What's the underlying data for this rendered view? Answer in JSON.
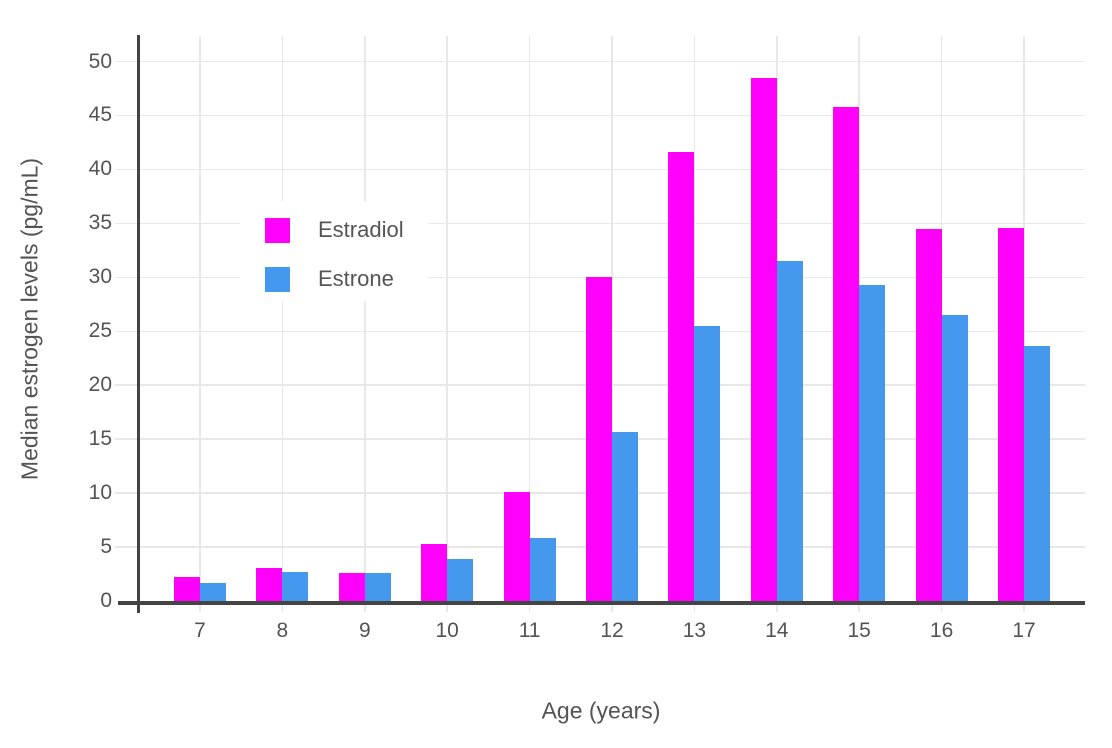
{
  "chart_data": {
    "type": "bar",
    "categories": [
      7,
      8,
      9,
      10,
      11,
      12,
      13,
      14,
      15,
      16,
      17
    ],
    "series": [
      {
        "name": "Estradiol",
        "color": "#FF00FB",
        "values": [
          2.2,
          3.1,
          2.6,
          5.3,
          10.1,
          30.0,
          41.6,
          48.5,
          45.8,
          34.5,
          34.6
        ]
      },
      {
        "name": "Estrone",
        "color": "#4499EE",
        "values": [
          1.7,
          2.7,
          2.6,
          3.9,
          5.8,
          15.7,
          25.5,
          31.5,
          29.3,
          26.5,
          23.6
        ]
      }
    ],
    "title": "",
    "xlabel": "Age (years)",
    "ylabel": "Median estrogen levels (pg/mL)",
    "ylim": [
      0,
      52.5
    ],
    "yticks": [
      0,
      5,
      10,
      15,
      20,
      25,
      30,
      35,
      40,
      45,
      50
    ],
    "grid": true,
    "legend_position": "inside-top-left",
    "bar_mode": "grouped"
  },
  "colors": {
    "grid": "#E8E8E8",
    "axis": "#444444",
    "text": "#545454",
    "background": "#FFFFFF"
  }
}
